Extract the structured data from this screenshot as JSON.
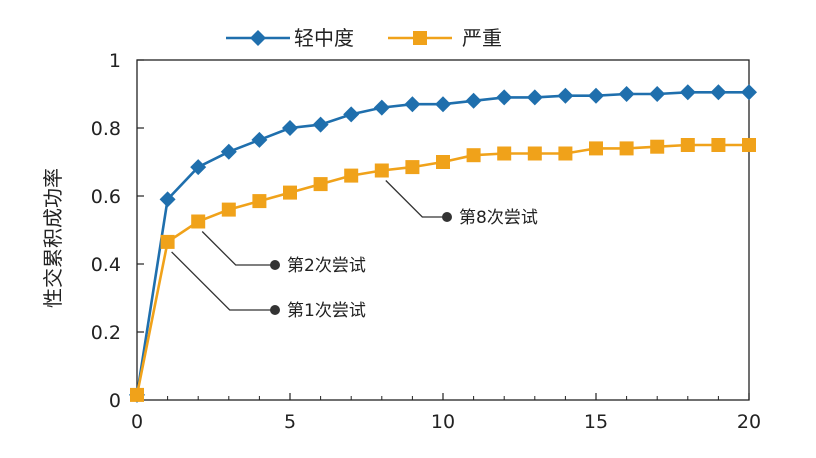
{
  "chart_data": {
    "type": "line",
    "title": "",
    "xlabel": "",
    "ylabel": "性交累积成功率",
    "xlim": [
      0,
      20
    ],
    "ylim": [
      0,
      1
    ],
    "xticks": [
      0,
      5,
      10,
      15,
      20
    ],
    "yticks": [
      "0",
      "0.2",
      "0.4",
      "0.6",
      "0.8",
      "1"
    ],
    "grid": false,
    "legend_position": "top",
    "x": [
      0,
      1,
      2,
      3,
      4,
      5,
      6,
      7,
      8,
      9,
      10,
      11,
      12,
      13,
      14,
      15,
      16,
      17,
      18,
      19,
      20
    ],
    "series": [
      {
        "name": "轻中度",
        "color": "#1f6fad",
        "marker": "diamond",
        "values": [
          0.015,
          0.59,
          0.685,
          0.73,
          0.765,
          0.8,
          0.81,
          0.84,
          0.86,
          0.87,
          0.87,
          0.88,
          0.89,
          0.89,
          0.895,
          0.895,
          0.9,
          0.9,
          0.905,
          0.905,
          0.905
        ]
      },
      {
        "name": "严重",
        "color": "#f0a21a",
        "marker": "square",
        "values": [
          0.015,
          0.465,
          0.525,
          0.56,
          0.585,
          0.61,
          0.635,
          0.66,
          0.675,
          0.685,
          0.7,
          0.72,
          0.725,
          0.725,
          0.725,
          0.74,
          0.74,
          0.745,
          0.75,
          0.75,
          0.75
        ]
      }
    ],
    "annotations": [
      {
        "text": "第8次尝试",
        "x": 8,
        "y": 0.675
      },
      {
        "text": "第2次尝试",
        "x": 2,
        "y": 0.525
      },
      {
        "text": "第1次尝试",
        "x": 1,
        "y": 0.465
      }
    ]
  }
}
